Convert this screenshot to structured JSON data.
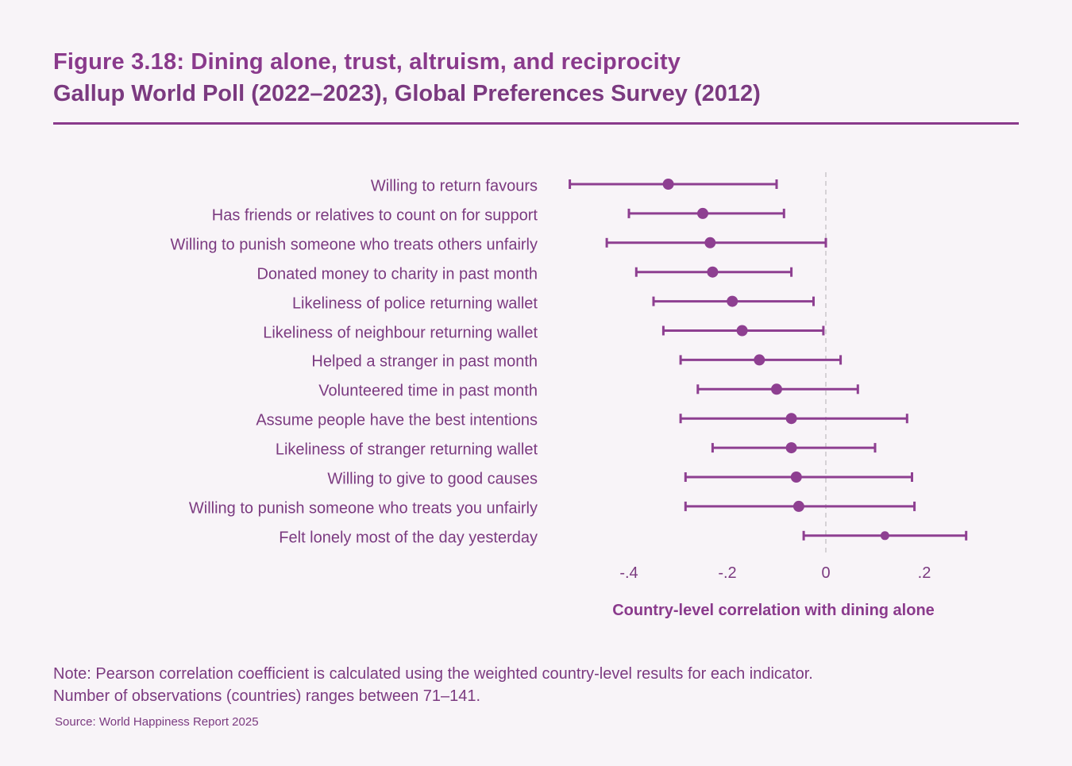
{
  "header": {
    "title": "Figure 3.18: Dining alone, trust, altruism, and reciprocity",
    "subtitle": "Gallup World Poll (2022–2023), Global Preferences Survey (2012)"
  },
  "chart_data": {
    "type": "scatter",
    "subtype": "coefficient-plot-with-confidence-intervals",
    "title": "Figure 3.18: Dining alone, trust, altruism, and reciprocity",
    "subtitle": "Gallup World Poll (2022–2023), Global Preferences Survey (2012)",
    "xlabel": "Country-level correlation with dining alone",
    "ylabel": "",
    "xlim": [
      -0.55,
      0.3
    ],
    "xticks": [
      -0.4,
      -0.2,
      0,
      0.2
    ],
    "xtick_labels": [
      "-.4",
      "-.2",
      "0",
      ".2"
    ],
    "reference_line": {
      "x": 0,
      "style": "dashed"
    },
    "grid": false,
    "legend": "none",
    "marker_color": "#8e3f91",
    "categories": [
      "Willing to return favours",
      "Has friends or relatives to count on for support",
      "Willing to punish someone who treats others unfairly",
      "Donated money to charity in past month",
      "Likeliness of police returning wallet",
      "Likeliness of neighbour returning wallet",
      "Helped a stranger in past month",
      "Volunteered time in past month",
      "Assume people have the best intentions",
      "Likeliness of stranger returning wallet",
      "Willing to give to good causes",
      "Willing to punish someone who treats you unfairly",
      "Felt lonely most of the day yesterday"
    ],
    "series": [
      {
        "name": "correlation",
        "values": [
          -0.32,
          -0.25,
          -0.235,
          -0.23,
          -0.19,
          -0.17,
          -0.135,
          -0.1,
          -0.07,
          -0.07,
          -0.06,
          -0.055,
          0.12
        ]
      },
      {
        "name": "ci_low",
        "values": [
          -0.52,
          -0.4,
          -0.445,
          -0.385,
          -0.35,
          -0.33,
          -0.295,
          -0.26,
          -0.295,
          -0.23,
          -0.285,
          -0.285,
          -0.045
        ]
      },
      {
        "name": "ci_high",
        "values": [
          -0.1,
          -0.085,
          0.0,
          -0.07,
          -0.025,
          -0.005,
          0.03,
          0.065,
          0.165,
          0.1,
          0.175,
          0.18,
          0.285
        ]
      }
    ]
  },
  "footer": {
    "note_line1": "Note: Pearson correlation coefficient is calculated using the weighted country-level results for each indicator.",
    "note_line2": "Number of observations (countries) ranges between 71–141.",
    "source": "Source: World Happiness Report 2025"
  }
}
